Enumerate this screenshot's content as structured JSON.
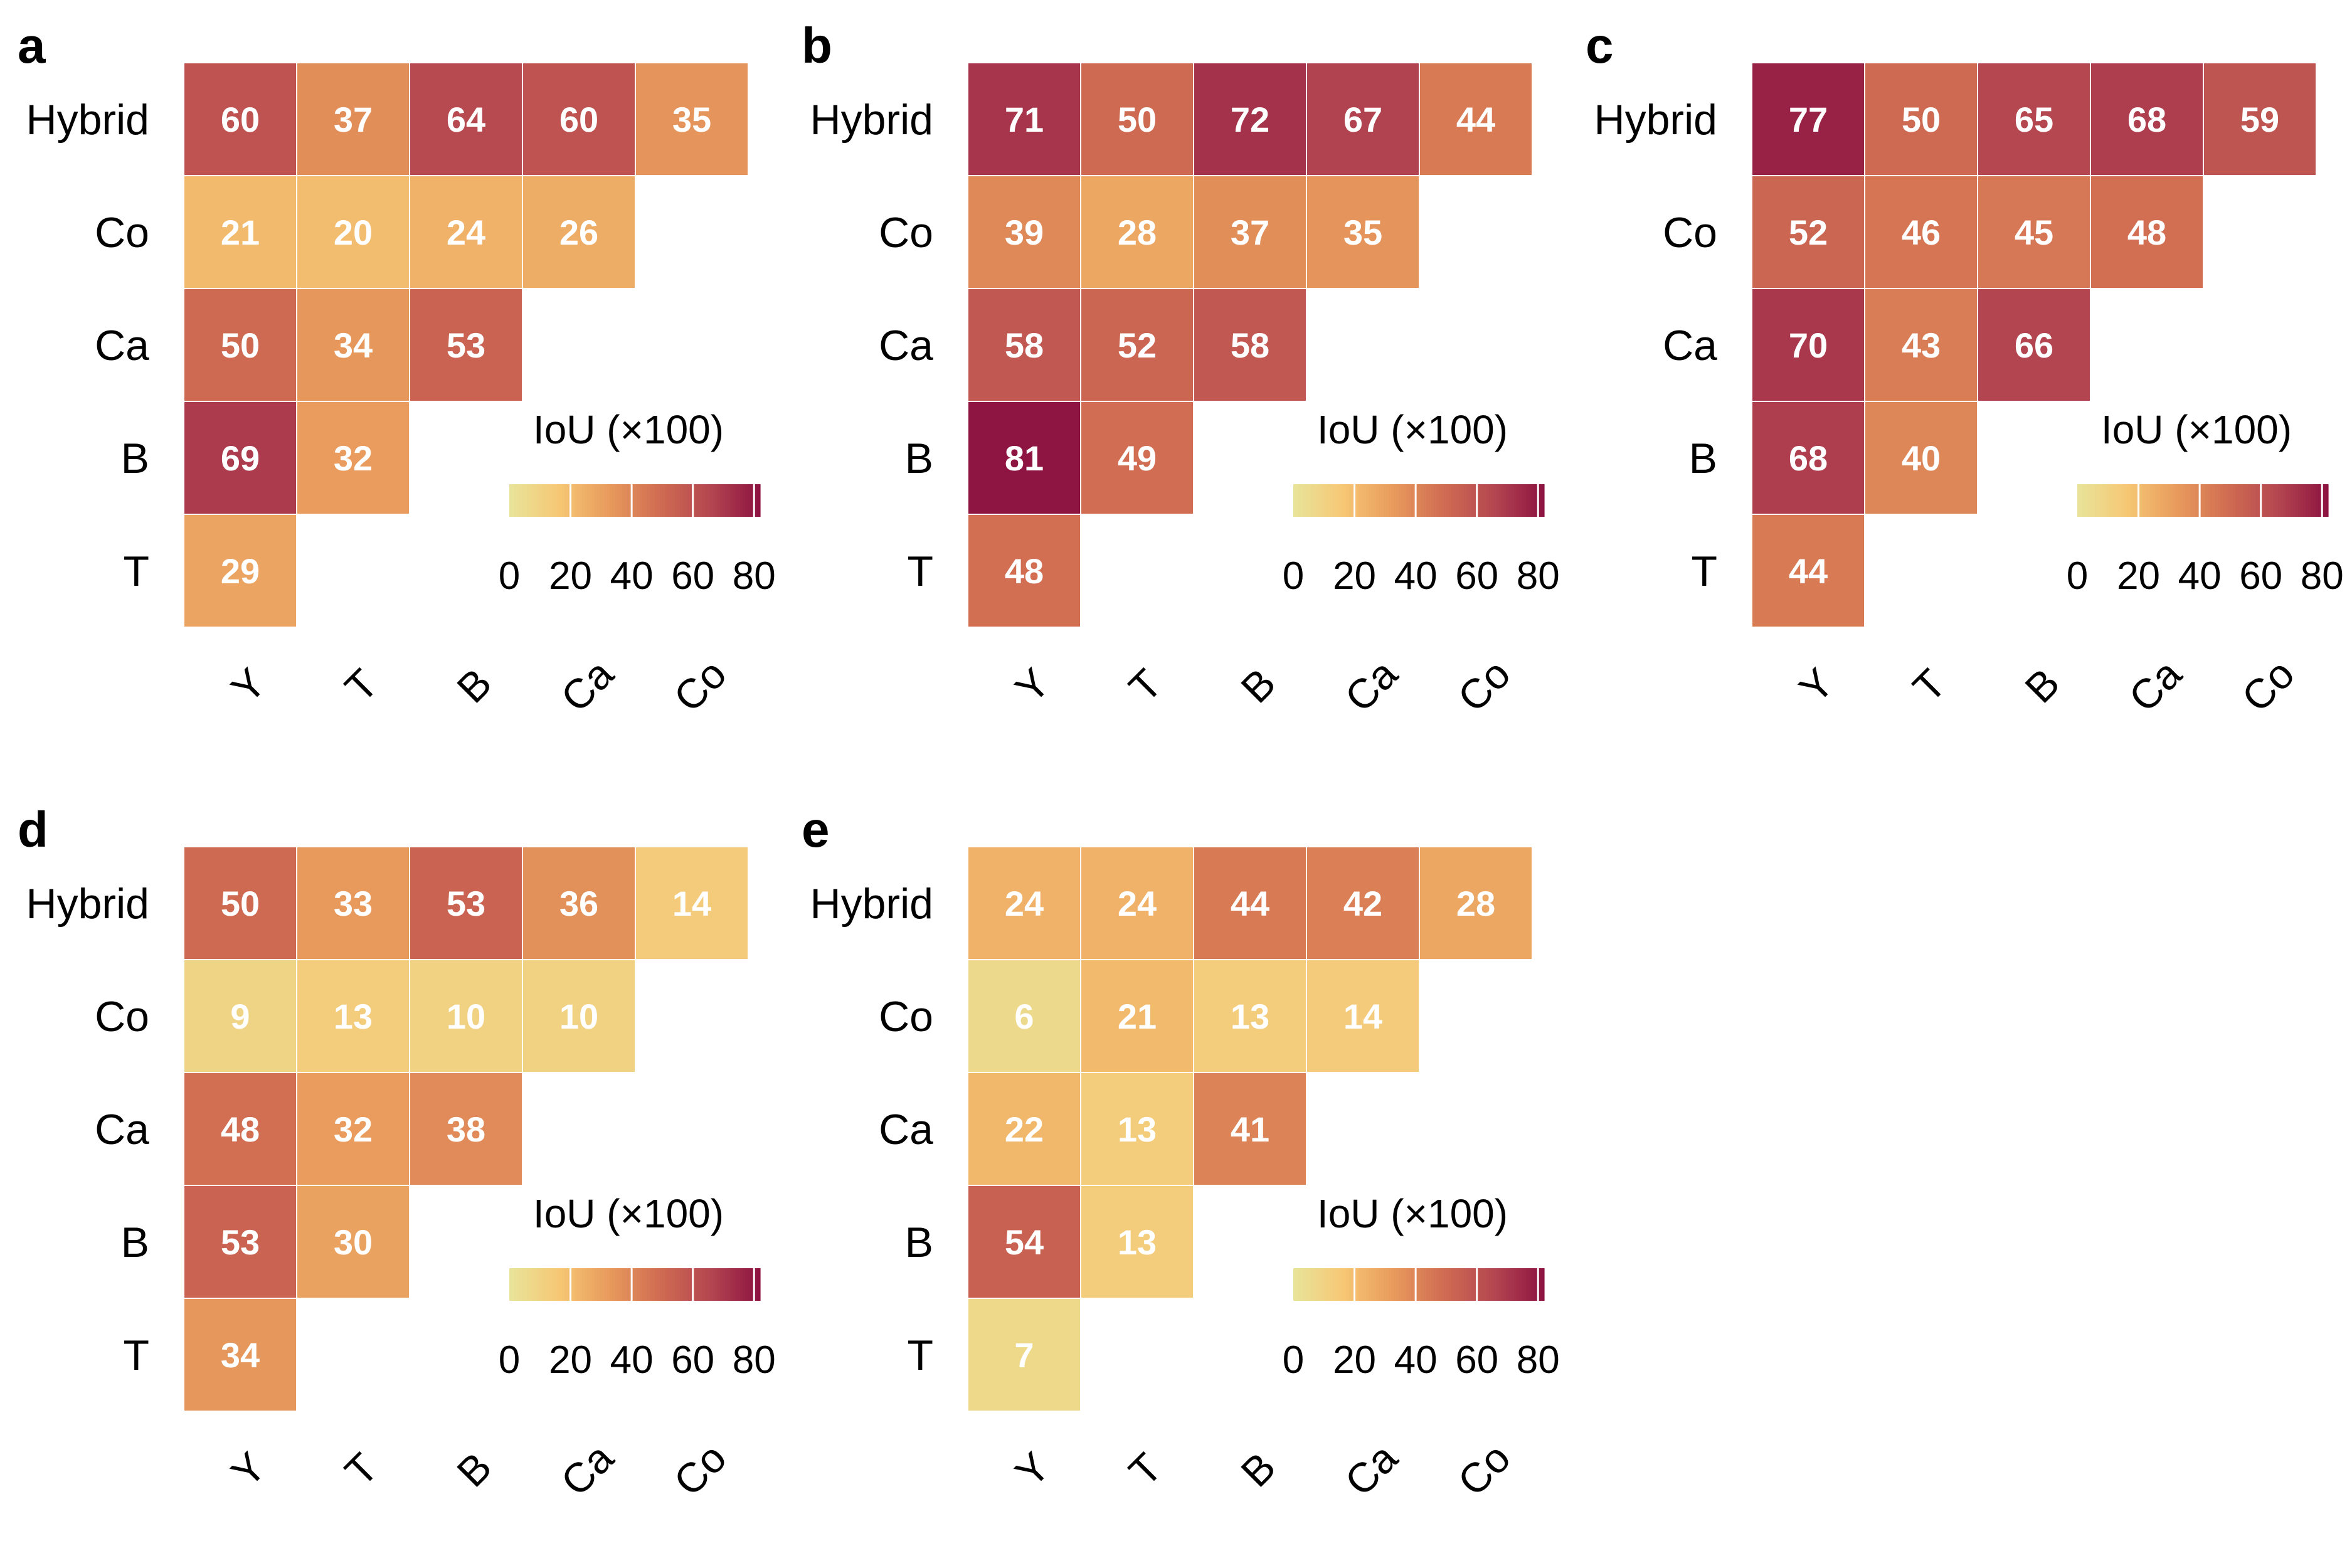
{
  "colors": {
    "scale": [
      "#e8e49a",
      "#f6c774",
      "#e89a5c",
      "#d06c52",
      "#b44650",
      "#8c1240"
    ],
    "cell_text": "#ffffff",
    "grid_line": "#ffffff"
  },
  "chart_data": [
    {
      "type": "heatmap",
      "panel_label": "a",
      "rows": [
        "Hybrid",
        "Co",
        "Ca",
        "B",
        "T"
      ],
      "columns": [
        "Y",
        "T",
        "B",
        "Ca",
        "Co"
      ],
      "values": [
        [
          60,
          37,
          64,
          60,
          35
        ],
        [
          21,
          20,
          24,
          26
        ],
        [
          50,
          34,
          53
        ],
        [
          69,
          32
        ],
        [
          29
        ]
      ],
      "colorbar": {
        "title": "IoU (×100)",
        "ticks": [
          "0",
          "20",
          "40",
          "60",
          "80"
        ],
        "range": [
          0,
          82
        ]
      }
    },
    {
      "type": "heatmap",
      "panel_label": "b",
      "rows": [
        "Hybrid",
        "Co",
        "Ca",
        "B",
        "T"
      ],
      "columns": [
        "Y",
        "T",
        "B",
        "Ca",
        "Co"
      ],
      "values": [
        [
          71,
          50,
          72,
          67,
          44
        ],
        [
          39,
          28,
          37,
          35
        ],
        [
          58,
          52,
          58
        ],
        [
          81,
          49
        ],
        [
          48
        ]
      ],
      "colorbar": {
        "title": "IoU (×100)",
        "ticks": [
          "0",
          "20",
          "40",
          "60",
          "80"
        ],
        "range": [
          0,
          82
        ]
      }
    },
    {
      "type": "heatmap",
      "panel_label": "c",
      "rows": [
        "Hybrid",
        "Co",
        "Ca",
        "B",
        "T"
      ],
      "columns": [
        "Y",
        "T",
        "B",
        "Ca",
        "Co"
      ],
      "values": [
        [
          77,
          50,
          65,
          68,
          59
        ],
        [
          52,
          46,
          45,
          48
        ],
        [
          70,
          43,
          66
        ],
        [
          68,
          40
        ],
        [
          44
        ]
      ],
      "colorbar": {
        "title": "IoU (×100)",
        "ticks": [
          "0",
          "20",
          "40",
          "60",
          "80"
        ],
        "range": [
          0,
          82
        ]
      }
    },
    {
      "type": "heatmap",
      "panel_label": "d",
      "rows": [
        "Hybrid",
        "Co",
        "Ca",
        "B",
        "T"
      ],
      "columns": [
        "Y",
        "T",
        "B",
        "Ca",
        "Co"
      ],
      "values": [
        [
          50,
          33,
          53,
          36,
          14
        ],
        [
          9,
          13,
          10,
          10
        ],
        [
          48,
          32,
          38
        ],
        [
          53,
          30
        ],
        [
          34
        ]
      ],
      "colorbar": {
        "title": "IoU (×100)",
        "ticks": [
          "0",
          "20",
          "40",
          "60",
          "80"
        ],
        "range": [
          0,
          82
        ]
      }
    },
    {
      "type": "heatmap",
      "panel_label": "e",
      "rows": [
        "Hybrid",
        "Co",
        "Ca",
        "B",
        "T"
      ],
      "columns": [
        "Y",
        "T",
        "B",
        "Ca",
        "Co"
      ],
      "values": [
        [
          24,
          24,
          44,
          42,
          28
        ],
        [
          6,
          21,
          13,
          14
        ],
        [
          22,
          13,
          41
        ],
        [
          54,
          13
        ],
        [
          7
        ]
      ],
      "colorbar": {
        "title": "IoU (×100)",
        "ticks": [
          "0",
          "20",
          "40",
          "60",
          "80"
        ],
        "range": [
          0,
          82
        ]
      }
    }
  ]
}
